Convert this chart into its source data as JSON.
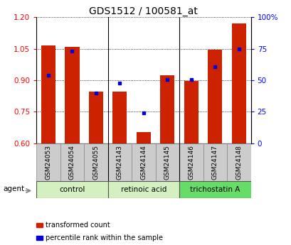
{
  "title": "GDS1512 / 100581_at",
  "samples": [
    "GSM24053",
    "GSM24054",
    "GSM24055",
    "GSM24143",
    "GSM24144",
    "GSM24145",
    "GSM24146",
    "GSM24147",
    "GSM24148"
  ],
  "red_values": [
    1.065,
    1.06,
    0.845,
    0.845,
    0.655,
    0.925,
    0.895,
    1.045,
    1.17
  ],
  "blue_values": [
    0.925,
    1.04,
    0.84,
    0.885,
    0.745,
    0.905,
    0.905,
    0.965,
    1.05
  ],
  "ymin": 0.6,
  "ymax": 1.2,
  "yticks": [
    0.6,
    0.75,
    0.9,
    1.05,
    1.2
  ],
  "right_yticks": [
    0,
    25,
    50,
    75,
    100
  ],
  "right_ylabels": [
    "0",
    "25",
    "50",
    "75",
    "100%"
  ],
  "groups": [
    {
      "label": "control",
      "start": 0,
      "end": 2,
      "color": "#d4f0c0"
    },
    {
      "label": "retinoic acid",
      "start": 3,
      "end": 5,
      "color": "#d4f0c0"
    },
    {
      "label": "trichostatin A",
      "start": 6,
      "end": 8,
      "color": "#66dd66"
    }
  ],
  "bar_color": "#cc2200",
  "dot_color": "#0000dd",
  "bar_width": 0.6,
  "sample_box_color": "#cccccc",
  "agent_label": "agent",
  "legend_items": [
    {
      "label": "transformed count",
      "color": "#cc2200"
    },
    {
      "label": "percentile rank within the sample",
      "color": "#0000dd"
    }
  ]
}
